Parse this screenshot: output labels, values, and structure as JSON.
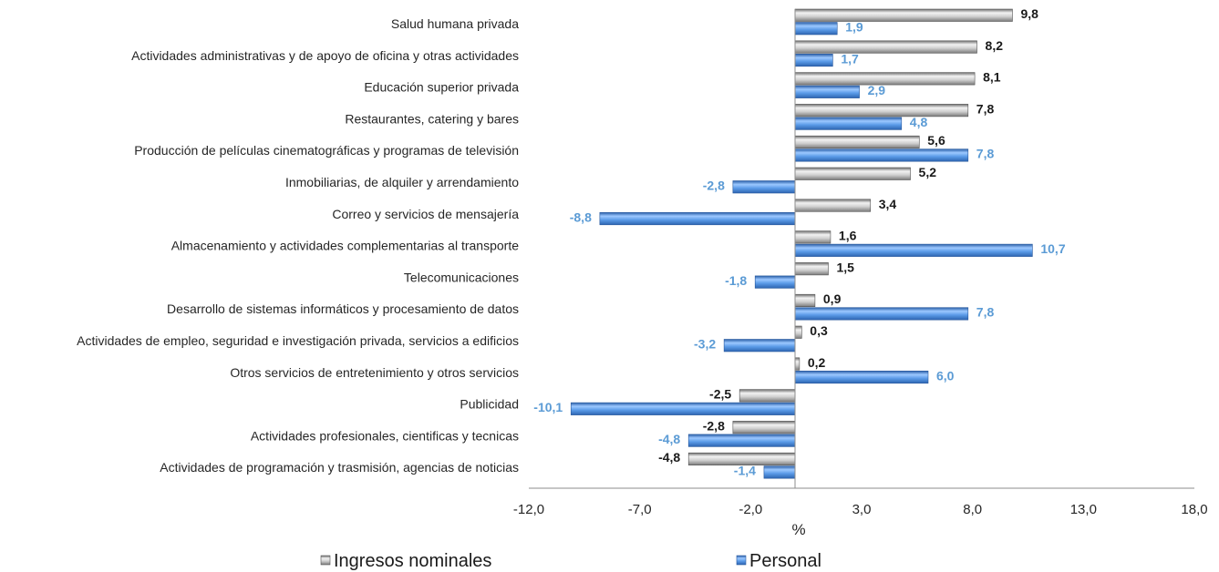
{
  "chart_data": {
    "type": "bar",
    "orientation": "horizontal",
    "title": "",
    "xlabel": "%",
    "ylabel": "",
    "xlim": [
      -12.0,
      18.0
    ],
    "ticks": [
      "-12,0",
      "-7,0",
      "-2,0",
      "3,0",
      "8,0",
      "13,0",
      "18,0"
    ],
    "tick_values": [
      -12,
      -7,
      -2,
      3,
      8,
      13,
      18
    ],
    "legend_position": "bottom",
    "grid": false,
    "categories": [
      "Salud humana privada",
      "Actividades administrativas y de apoyo de oficina y otras actividades",
      "Educación superior privada",
      "Restaurantes, catering y bares",
      "Producción de películas cinematográficas y programas de televisión",
      "Inmobiliarias, de alquiler y arrendamiento",
      "Correo y servicios de mensajería",
      "Almacenamiento y actividades complementarias al transporte",
      "Telecomunicaciones",
      "Desarrollo de sistemas informáticos y procesamiento de datos",
      "Actividades de empleo, seguridad e investigación privada, servicios a edificios",
      "Otros servicios de entretenimiento y otros servicios",
      "Publicidad",
      "Actividades profesionales, cientificas y tecnicas",
      "Actividades de programación y trasmisión, agencias de noticias"
    ],
    "series": [
      {
        "name": "Ingresos nominales",
        "color": "#a6a6a6",
        "label_color": "#1a1a1a",
        "values": [
          9.8,
          8.2,
          8.1,
          7.8,
          5.6,
          5.2,
          3.4,
          1.6,
          1.5,
          0.9,
          0.3,
          0.2,
          -2.5,
          -2.8,
          -4.8
        ],
        "labels": [
          "9,8",
          "8,2",
          "8,1",
          "7,8",
          "5,6",
          "5,2",
          "3,4",
          "1,6",
          "1,5",
          "0,9",
          "0,3",
          "0,2",
          "-2,5",
          "-2,8",
          "-4,8"
        ]
      },
      {
        "name": "Personal",
        "color": "#4f8fe0",
        "label_color": "#5b9bd5",
        "values": [
          1.9,
          1.7,
          2.9,
          4.8,
          7.8,
          -2.8,
          -8.8,
          10.7,
          -1.8,
          7.8,
          -3.2,
          6.0,
          -10.1,
          -4.8,
          -1.4
        ],
        "labels": [
          "1,9",
          "1,7",
          "2,9",
          "4,8",
          "7,8",
          "-2,8",
          "-8,8",
          "10,7",
          "-1,8",
          "7,8",
          "-3,2",
          "6,0",
          "-10,1",
          "-4,8",
          "-1,4"
        ]
      }
    ]
  }
}
